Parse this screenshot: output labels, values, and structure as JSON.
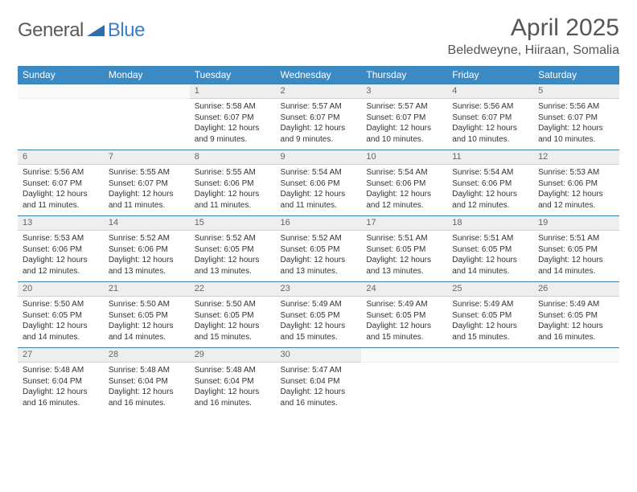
{
  "brand": {
    "part1": "General",
    "part2": "Blue",
    "triangle_color": "#2f6fa8"
  },
  "title": "April 2025",
  "location": "Beledweyne, Hiiraan, Somalia",
  "colors": {
    "header_bg": "#3b8ac4",
    "header_text": "#ffffff",
    "daynum_bg": "#eeeeee",
    "rule": "#3b7fa8",
    "body_text": "#333333"
  },
  "weekdays": [
    "Sunday",
    "Monday",
    "Tuesday",
    "Wednesday",
    "Thursday",
    "Friday",
    "Saturday"
  ],
  "weeks": [
    [
      null,
      null,
      {
        "n": "1",
        "sunrise": "5:58 AM",
        "sunset": "6:07 PM",
        "daylight": "12 hours and 9 minutes."
      },
      {
        "n": "2",
        "sunrise": "5:57 AM",
        "sunset": "6:07 PM",
        "daylight": "12 hours and 9 minutes."
      },
      {
        "n": "3",
        "sunrise": "5:57 AM",
        "sunset": "6:07 PM",
        "daylight": "12 hours and 10 minutes."
      },
      {
        "n": "4",
        "sunrise": "5:56 AM",
        "sunset": "6:07 PM",
        "daylight": "12 hours and 10 minutes."
      },
      {
        "n": "5",
        "sunrise": "5:56 AM",
        "sunset": "6:07 PM",
        "daylight": "12 hours and 10 minutes."
      }
    ],
    [
      {
        "n": "6",
        "sunrise": "5:56 AM",
        "sunset": "6:07 PM",
        "daylight": "12 hours and 11 minutes."
      },
      {
        "n": "7",
        "sunrise": "5:55 AM",
        "sunset": "6:07 PM",
        "daylight": "12 hours and 11 minutes."
      },
      {
        "n": "8",
        "sunrise": "5:55 AM",
        "sunset": "6:06 PM",
        "daylight": "12 hours and 11 minutes."
      },
      {
        "n": "9",
        "sunrise": "5:54 AM",
        "sunset": "6:06 PM",
        "daylight": "12 hours and 11 minutes."
      },
      {
        "n": "10",
        "sunrise": "5:54 AM",
        "sunset": "6:06 PM",
        "daylight": "12 hours and 12 minutes."
      },
      {
        "n": "11",
        "sunrise": "5:54 AM",
        "sunset": "6:06 PM",
        "daylight": "12 hours and 12 minutes."
      },
      {
        "n": "12",
        "sunrise": "5:53 AM",
        "sunset": "6:06 PM",
        "daylight": "12 hours and 12 minutes."
      }
    ],
    [
      {
        "n": "13",
        "sunrise": "5:53 AM",
        "sunset": "6:06 PM",
        "daylight": "12 hours and 12 minutes."
      },
      {
        "n": "14",
        "sunrise": "5:52 AM",
        "sunset": "6:06 PM",
        "daylight": "12 hours and 13 minutes."
      },
      {
        "n": "15",
        "sunrise": "5:52 AM",
        "sunset": "6:05 PM",
        "daylight": "12 hours and 13 minutes."
      },
      {
        "n": "16",
        "sunrise": "5:52 AM",
        "sunset": "6:05 PM",
        "daylight": "12 hours and 13 minutes."
      },
      {
        "n": "17",
        "sunrise": "5:51 AM",
        "sunset": "6:05 PM",
        "daylight": "12 hours and 13 minutes."
      },
      {
        "n": "18",
        "sunrise": "5:51 AM",
        "sunset": "6:05 PM",
        "daylight": "12 hours and 14 minutes."
      },
      {
        "n": "19",
        "sunrise": "5:51 AM",
        "sunset": "6:05 PM",
        "daylight": "12 hours and 14 minutes."
      }
    ],
    [
      {
        "n": "20",
        "sunrise": "5:50 AM",
        "sunset": "6:05 PM",
        "daylight": "12 hours and 14 minutes."
      },
      {
        "n": "21",
        "sunrise": "5:50 AM",
        "sunset": "6:05 PM",
        "daylight": "12 hours and 14 minutes."
      },
      {
        "n": "22",
        "sunrise": "5:50 AM",
        "sunset": "6:05 PM",
        "daylight": "12 hours and 15 minutes."
      },
      {
        "n": "23",
        "sunrise": "5:49 AM",
        "sunset": "6:05 PM",
        "daylight": "12 hours and 15 minutes."
      },
      {
        "n": "24",
        "sunrise": "5:49 AM",
        "sunset": "6:05 PM",
        "daylight": "12 hours and 15 minutes."
      },
      {
        "n": "25",
        "sunrise": "5:49 AM",
        "sunset": "6:05 PM",
        "daylight": "12 hours and 15 minutes."
      },
      {
        "n": "26",
        "sunrise": "5:49 AM",
        "sunset": "6:05 PM",
        "daylight": "12 hours and 16 minutes."
      }
    ],
    [
      {
        "n": "27",
        "sunrise": "5:48 AM",
        "sunset": "6:04 PM",
        "daylight": "12 hours and 16 minutes."
      },
      {
        "n": "28",
        "sunrise": "5:48 AM",
        "sunset": "6:04 PM",
        "daylight": "12 hours and 16 minutes."
      },
      {
        "n": "29",
        "sunrise": "5:48 AM",
        "sunset": "6:04 PM",
        "daylight": "12 hours and 16 minutes."
      },
      {
        "n": "30",
        "sunrise": "5:47 AM",
        "sunset": "6:04 PM",
        "daylight": "12 hours and 16 minutes."
      },
      null,
      null,
      null
    ]
  ],
  "labels": {
    "sunrise": "Sunrise:",
    "sunset": "Sunset:",
    "daylight": "Daylight:"
  }
}
